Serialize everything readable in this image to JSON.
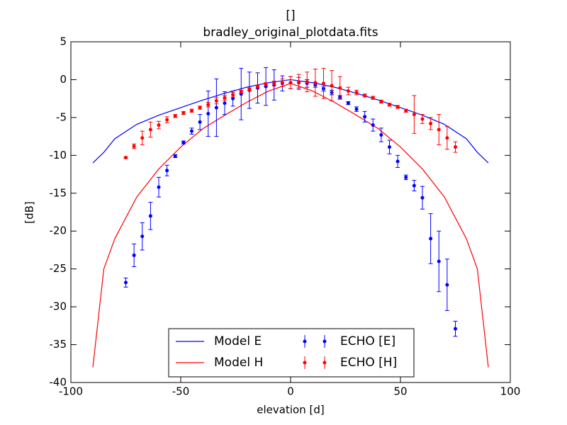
{
  "chart_data": {
    "type": "line_errorbar",
    "title": "[]",
    "subtitle": "bradley_original_plotdata.fits",
    "x_label": "elevation [d]",
    "y_label": "[dB]",
    "xlim": [
      -100,
      100
    ],
    "ylim": [
      -40,
      5
    ],
    "xticks": [
      -100,
      -50,
      0,
      50,
      100
    ],
    "yticks": [
      5,
      0,
      -5,
      -10,
      -15,
      -20,
      -25,
      -30,
      -35,
      -40
    ],
    "legend": "lower center",
    "lines": [
      {
        "name": "Model E",
        "color": "#0000ff",
        "x": [
          -90,
          -85,
          -80,
          -70,
          -60,
          -50,
          -40,
          -30,
          -20,
          -10,
          0,
          10,
          20,
          30,
          40,
          50,
          60,
          70,
          80,
          85,
          90
        ],
        "values": [
          -11,
          -9.6,
          -7.8,
          -5.9,
          -4.7,
          -3.7,
          -2.7,
          -1.8,
          -1,
          -0.4,
          0,
          -0.4,
          -1,
          -1.8,
          -2.7,
          -3.7,
          -4.7,
          -5.9,
          -7.8,
          -9.6,
          -11
        ]
      },
      {
        "name": "Model H",
        "color": "#ff0000",
        "x": [
          -90,
          -85,
          -80,
          -70,
          -60,
          -50,
          -40,
          -30,
          -20,
          -10,
          0,
          10,
          20,
          30,
          40,
          50,
          60,
          70,
          80,
          85,
          90
        ],
        "values": [
          -38,
          -25,
          -21,
          -15.5,
          -11.8,
          -8.9,
          -6.5,
          -4.7,
          -3,
          -1.5,
          -0.5,
          -1.5,
          -3,
          -4.7,
          -6.5,
          -8.9,
          -11.8,
          -15.5,
          -21,
          -25,
          -38
        ]
      }
    ],
    "series": [
      {
        "name": "ECHO [E]",
        "color": "#0000ff",
        "x": [
          -75,
          -71.25,
          -67.5,
          -63.75,
          -60,
          -56.25,
          -52.5,
          -48.75,
          -45,
          -41.25,
          -37.5,
          -33.75,
          -30,
          -26.25,
          -22.5,
          -18.75,
          -15,
          -11.25,
          -7.5,
          -3.75,
          0,
          3.75,
          7.5,
          11.25,
          15,
          18.75,
          22.5,
          26.25,
          30,
          33.75,
          37.5,
          41.25,
          45,
          48.75,
          52.5,
          56.25,
          60,
          63.75,
          67.5,
          71.25,
          75
        ],
        "values": [
          -26.8,
          -23.2,
          -20.7,
          -18,
          -14.2,
          -12,
          -10.1,
          -8.3,
          -6.8,
          -5.6,
          -4.5,
          -3.7,
          -3.1,
          -2.5,
          -1.9,
          -1.4,
          -1.1,
          -0.9,
          -0.7,
          -0.5,
          -0.4,
          -0.4,
          -0.5,
          -0.7,
          -1.2,
          -1.7,
          -2.3,
          -3.1,
          -3.9,
          -4.9,
          -6,
          -7.3,
          -8.9,
          -10.8,
          -12.9,
          -14,
          -15.6,
          -21,
          -24,
          -27.1,
          -32.9
        ],
        "errors": [
          0.6,
          1.5,
          1.8,
          1.8,
          1.3,
          0.7,
          0.2,
          0.2,
          0.4,
          1,
          3,
          3.8,
          1.5,
          1,
          3.4,
          2.4,
          2,
          2.5,
          2,
          1,
          0.8,
          0.7,
          0.5,
          0.3,
          0.3,
          0.3,
          0.2,
          0.2,
          0.3,
          0.7,
          0.8,
          0.9,
          0.9,
          0.8,
          0.3,
          0.7,
          1.5,
          3.3,
          4,
          3.4,
          1
        ]
      },
      {
        "name": "ECHO [H]",
        "color": "#ff0000",
        "x": [
          -75,
          -71.25,
          -67.5,
          -63.75,
          -60,
          -56.25,
          -52.5,
          -48.75,
          -45,
          -41.25,
          -37.5,
          -33.75,
          -30,
          -26.25,
          -22.5,
          -18.75,
          -15,
          -11.25,
          -7.5,
          -3.75,
          0,
          3.75,
          7.5,
          11.25,
          15,
          18.75,
          22.5,
          26.25,
          30,
          33.75,
          37.5,
          41.25,
          45,
          48.75,
          52.5,
          56.25,
          60,
          63.75,
          67.5,
          71.25,
          75
        ],
        "values": [
          -10.3,
          -8.8,
          -7.7,
          -6.6,
          -6,
          -5.3,
          -4.8,
          -4.4,
          -4.1,
          -3.7,
          -3.3,
          -2.8,
          -2.4,
          -2,
          -1.6,
          -1.3,
          -0.9,
          -0.6,
          -0.5,
          -0.4,
          -0.4,
          -0.3,
          -0.3,
          -0.4,
          -0.5,
          -0.8,
          -1.1,
          -1.5,
          -1.7,
          -2.1,
          -2.4,
          -2.9,
          -3.3,
          -3.6,
          -4.1,
          -4.6,
          -5.2,
          -5.8,
          -6.6,
          -7.7,
          -8.9
        ],
        "errors": [
          0.1,
          0.3,
          0.9,
          1,
          0.5,
          0.4,
          0.2,
          0.2,
          0.2,
          0.2,
          0.3,
          0.4,
          0.3,
          0.3,
          0.2,
          0.2,
          0.2,
          0.2,
          0.3,
          0.5,
          0.8,
          1,
          1.3,
          1.8,
          2,
          2,
          1.5,
          0.5,
          0.3,
          0.2,
          0.2,
          0.2,
          0.2,
          0.2,
          0.2,
          2.5,
          0.6,
          0.8,
          2,
          1.5,
          0.7
        ]
      }
    ]
  }
}
